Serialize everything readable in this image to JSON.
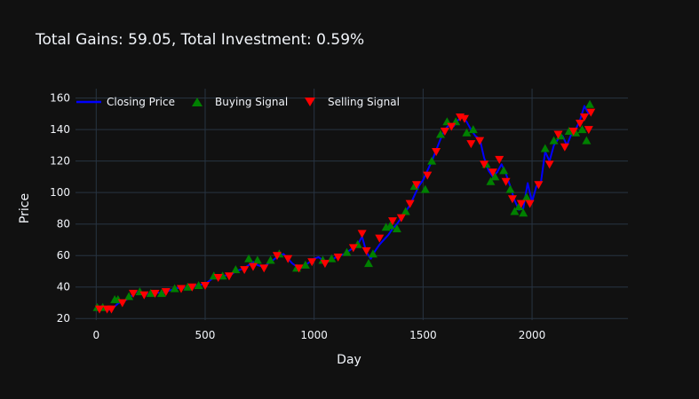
{
  "chart_data": {
    "type": "line",
    "title": "Total Gains: 59.05, Total Investment: 0.59%",
    "xlabel": "Day",
    "ylabel": "Price",
    "xlim": [
      -95,
      2440
    ],
    "ylim": [
      19,
      166
    ],
    "xticks": [
      0,
      500,
      1000,
      1500,
      2000
    ],
    "yticks": [
      20,
      40,
      60,
      80,
      100,
      120,
      140,
      160
    ],
    "grid": true,
    "legend_position": "top-left",
    "colors": {
      "background": "#111111",
      "grid": "#283442",
      "line": "#0000ff",
      "buy": "#008000",
      "sell": "#ff0000",
      "text": "#f2f5fa"
    },
    "series": [
      {
        "name": "Closing Price",
        "kind": "line",
        "points": [
          [
            0,
            26
          ],
          [
            20,
            27
          ],
          [
            40,
            26
          ],
          [
            60,
            25.5
          ],
          [
            80,
            27
          ],
          [
            100,
            29.5
          ],
          [
            120,
            31
          ],
          [
            140,
            32
          ],
          [
            160,
            34
          ],
          [
            180,
            37
          ],
          [
            200,
            36.5
          ],
          [
            220,
            36
          ],
          [
            240,
            35.5
          ],
          [
            260,
            36
          ],
          [
            280,
            36.5
          ],
          [
            300,
            36
          ],
          [
            320,
            37
          ],
          [
            340,
            38
          ],
          [
            360,
            39
          ],
          [
            380,
            39.5
          ],
          [
            400,
            39.5
          ],
          [
            420,
            40
          ],
          [
            440,
            40.5
          ],
          [
            460,
            41
          ],
          [
            480,
            41.5
          ],
          [
            500,
            42
          ],
          [
            520,
            44
          ],
          [
            540,
            46
          ],
          [
            560,
            47
          ],
          [
            580,
            47
          ],
          [
            600,
            47.5
          ],
          [
            620,
            48
          ],
          [
            640,
            50
          ],
          [
            660,
            51
          ],
          [
            680,
            52
          ],
          [
            700,
            54
          ],
          [
            720,
            56
          ],
          [
            740,
            54
          ],
          [
            760,
            53
          ],
          [
            780,
            54
          ],
          [
            800,
            56
          ],
          [
            820,
            58
          ],
          [
            840,
            60
          ],
          [
            860,
            61
          ],
          [
            880,
            58
          ],
          [
            900,
            55
          ],
          [
            920,
            53
          ],
          [
            940,
            52
          ],
          [
            960,
            54
          ],
          [
            980,
            56
          ],
          [
            1000,
            58
          ],
          [
            1020,
            59
          ],
          [
            1040,
            57
          ],
          [
            1060,
            56
          ],
          [
            1080,
            57
          ],
          [
            1100,
            59
          ],
          [
            1120,
            60
          ],
          [
            1140,
            61
          ],
          [
            1160,
            63
          ],
          [
            1180,
            65
          ],
          [
            1200,
            67
          ],
          [
            1220,
            72
          ],
          [
            1240,
            62
          ],
          [
            1260,
            58
          ],
          [
            1280,
            63
          ],
          [
            1300,
            67
          ],
          [
            1320,
            70
          ],
          [
            1340,
            73
          ],
          [
            1360,
            77
          ],
          [
            1380,
            80
          ],
          [
            1400,
            84
          ],
          [
            1420,
            88
          ],
          [
            1440,
            92
          ],
          [
            1460,
            98
          ],
          [
            1480,
            104
          ],
          [
            1500,
            108
          ],
          [
            1520,
            114
          ],
          [
            1540,
            120
          ],
          [
            1560,
            127
          ],
          [
            1580,
            134
          ],
          [
            1600,
            140
          ],
          [
            1620,
            143
          ],
          [
            1640,
            142
          ],
          [
            1660,
            146
          ],
          [
            1680,
            148
          ],
          [
            1700,
            145
          ],
          [
            1720,
            140
          ],
          [
            1740,
            136
          ],
          [
            1760,
            134
          ],
          [
            1780,
            122
          ],
          [
            1800,
            114
          ],
          [
            1820,
            110
          ],
          [
            1840,
            113
          ],
          [
            1860,
            118
          ],
          [
            1880,
            112
          ],
          [
            1900,
            104
          ],
          [
            1920,
            95
          ],
          [
            1940,
            89
          ],
          [
            1960,
            90
          ],
          [
            1980,
            106
          ],
          [
            2000,
            94
          ],
          [
            2020,
            104
          ],
          [
            2040,
            106
          ],
          [
            2060,
            126
          ],
          [
            2080,
            120
          ],
          [
            2100,
            130
          ],
          [
            2120,
            134
          ],
          [
            2140,
            136
          ],
          [
            2160,
            130
          ],
          [
            2180,
            137
          ],
          [
            2200,
            140
          ],
          [
            2220,
            146
          ],
          [
            2240,
            155
          ],
          [
            2260,
            150
          ],
          [
            2270,
            152
          ]
        ]
      },
      {
        "name": "Buying Signal",
        "kind": "marker-up",
        "points": [
          [
            5,
            27
          ],
          [
            30,
            27
          ],
          [
            85,
            32
          ],
          [
            100,
            32
          ],
          [
            150,
            34
          ],
          [
            200,
            37
          ],
          [
            250,
            36
          ],
          [
            300,
            36
          ],
          [
            360,
            39
          ],
          [
            420,
            40
          ],
          [
            470,
            41
          ],
          [
            540,
            47
          ],
          [
            580,
            47
          ],
          [
            640,
            51
          ],
          [
            700,
            58
          ],
          [
            740,
            57
          ],
          [
            800,
            57
          ],
          [
            840,
            61
          ],
          [
            920,
            52
          ],
          [
            960,
            54
          ],
          [
            1040,
            57
          ],
          [
            1080,
            58
          ],
          [
            1150,
            62
          ],
          [
            1200,
            67
          ],
          [
            1250,
            55
          ],
          [
            1270,
            61
          ],
          [
            1330,
            78
          ],
          [
            1350,
            79
          ],
          [
            1380,
            77
          ],
          [
            1420,
            88
          ],
          [
            1460,
            104
          ],
          [
            1510,
            102
          ],
          [
            1540,
            120
          ],
          [
            1580,
            137
          ],
          [
            1610,
            145
          ],
          [
            1650,
            145
          ],
          [
            1700,
            138
          ],
          [
            1730,
            140
          ],
          [
            1790,
            118
          ],
          [
            1810,
            107
          ],
          [
            1830,
            110
          ],
          [
            1870,
            114
          ],
          [
            1900,
            102
          ],
          [
            1920,
            88
          ],
          [
            1940,
            91
          ],
          [
            1960,
            87
          ],
          [
            1975,
            97
          ],
          [
            2060,
            128
          ],
          [
            2100,
            133
          ],
          [
            2130,
            136
          ],
          [
            2170,
            139
          ],
          [
            2200,
            138
          ],
          [
            2230,
            140
          ],
          [
            2250,
            133
          ],
          [
            2265,
            156
          ]
        ]
      },
      {
        "name": "Selling Signal",
        "kind": "marker-down",
        "points": [
          [
            15,
            26
          ],
          [
            50,
            26
          ],
          [
            70,
            26
          ],
          [
            120,
            30
          ],
          [
            170,
            36
          ],
          [
            220,
            35
          ],
          [
            270,
            36
          ],
          [
            320,
            37
          ],
          [
            390,
            39
          ],
          [
            440,
            40
          ],
          [
            500,
            41
          ],
          [
            560,
            46
          ],
          [
            610,
            47
          ],
          [
            680,
            51
          ],
          [
            720,
            53
          ],
          [
            770,
            52
          ],
          [
            830,
            60
          ],
          [
            880,
            58
          ],
          [
            930,
            52
          ],
          [
            990,
            56
          ],
          [
            1050,
            55
          ],
          [
            1110,
            59
          ],
          [
            1180,
            65
          ],
          [
            1220,
            74
          ],
          [
            1240,
            63
          ],
          [
            1300,
            71
          ],
          [
            1360,
            82
          ],
          [
            1400,
            84
          ],
          [
            1440,
            93
          ],
          [
            1470,
            105
          ],
          [
            1520,
            111
          ],
          [
            1560,
            126
          ],
          [
            1600,
            139
          ],
          [
            1630,
            142
          ],
          [
            1670,
            148
          ],
          [
            1690,
            147
          ],
          [
            1720,
            131
          ],
          [
            1760,
            133
          ],
          [
            1780,
            118
          ],
          [
            1820,
            113
          ],
          [
            1850,
            121
          ],
          [
            1880,
            107
          ],
          [
            1910,
            96
          ],
          [
            1950,
            93
          ],
          [
            1990,
            93
          ],
          [
            2030,
            105
          ],
          [
            2080,
            118
          ],
          [
            2120,
            137
          ],
          [
            2150,
            129
          ],
          [
            2190,
            139
          ],
          [
            2220,
            144
          ],
          [
            2240,
            148
          ],
          [
            2260,
            140
          ],
          [
            2270,
            151
          ]
        ]
      }
    ]
  }
}
